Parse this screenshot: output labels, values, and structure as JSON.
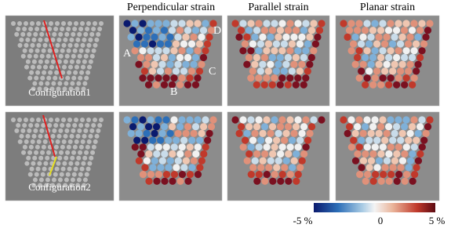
{
  "headers": [
    "Perpendicular strain",
    "Parallel strain",
    "Planar strain"
  ],
  "rows": [
    {
      "label": "Configuration1"
    },
    {
      "label": "Configuration2"
    }
  ],
  "markers": [
    "A",
    "B",
    "C",
    "D"
  ],
  "colorbar": {
    "labels": [
      "-5 %",
      "0",
      "5 %"
    ]
  }
}
